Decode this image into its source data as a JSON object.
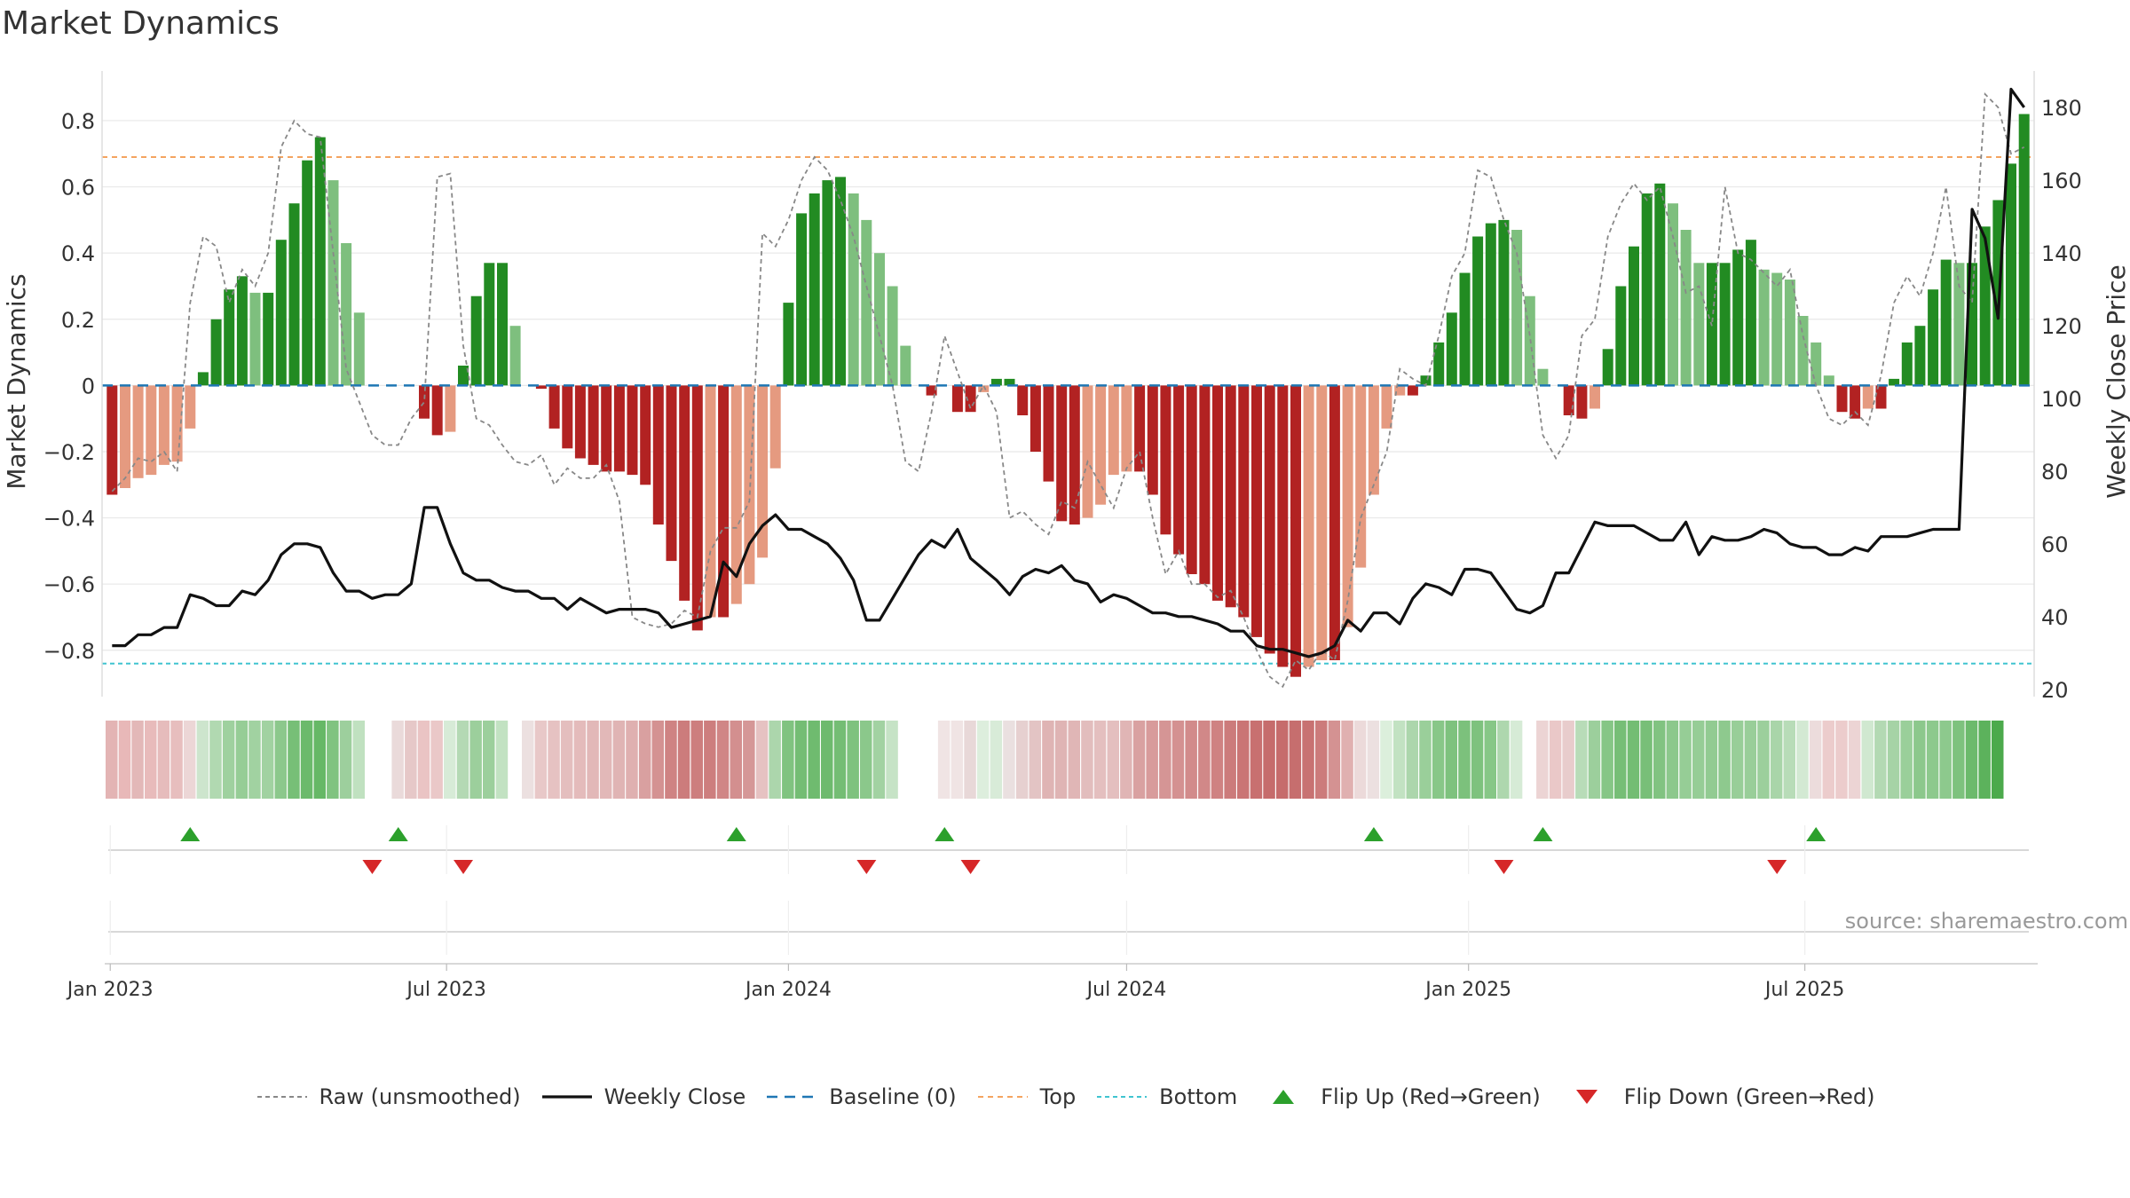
{
  "title": "Market Dynamics",
  "source": "source: sharemaestro.com",
  "colors": {
    "strong_green": "#228b22",
    "light_green": "#7ebf7e",
    "strong_red": "#b22222",
    "light_red": "#e59a80",
    "close": "#111111",
    "raw": "#888888",
    "baseline": "#1f77b4",
    "top": "#f4a460",
    "bottom": "#40c4d0",
    "flip_up": "#2ca02c",
    "flip_down": "#d62728",
    "grid": "#e8e8e8"
  },
  "legend": [
    {
      "key": "raw",
      "label": "Raw (unsmoothed)",
      "icon": "dotted-line-icon"
    },
    {
      "key": "close",
      "label": "Weekly Close",
      "icon": "solid-line-icon"
    },
    {
      "key": "baseline",
      "label": "Baseline (0)",
      "icon": "dashed-line-icon"
    },
    {
      "key": "top",
      "label": "Top",
      "icon": "dashed-line-icon"
    },
    {
      "key": "bottom",
      "label": "Bottom",
      "icon": "dotted-line-icon"
    },
    {
      "key": "flip_up",
      "label": "Flip Up (Red→Green)",
      "icon": "triangle-up-icon"
    },
    {
      "key": "flip_down",
      "label": "Flip Down (Green→Red)",
      "icon": "triangle-down-icon"
    }
  ],
  "chart_data": {
    "type": "bar",
    "title": "Market Dynamics",
    "ylabel": "Market Dynamics",
    "y2label": "Weekly Close Price",
    "ylim": [
      -0.94,
      0.95
    ],
    "y2lim": [
      18,
      190
    ],
    "yticks": [
      0.8,
      0.6,
      0.4,
      0.2,
      0,
      -0.2,
      -0.4,
      -0.6,
      -0.8
    ],
    "ytick_labels": [
      "0.8",
      "0.6",
      "0.4",
      "0.2",
      "0",
      "−0.2",
      "−0.4",
      "−0.6",
      "−0.8"
    ],
    "y2ticks": [
      180,
      160,
      140,
      120,
      100,
      80,
      60,
      40,
      20
    ],
    "x_start": "2023-01-02",
    "x_end": "2025-10-20",
    "xticks": [
      {
        "date": "2023-01-01",
        "label": "Jan 2023"
      },
      {
        "date": "2023-07-01",
        "label": "Jul 2023"
      },
      {
        "date": "2024-01-01",
        "label": "Jan 2024"
      },
      {
        "date": "2024-07-01",
        "label": "Jul 2024"
      },
      {
        "date": "2025-01-01",
        "label": "Jan 2025"
      },
      {
        "date": "2025-07-01",
        "label": "Jul 2025"
      }
    ],
    "top_level": 0.69,
    "bottom_level": -0.84,
    "baseline": 0,
    "grid": true,
    "dynamics": [
      -0.33,
      -0.31,
      -0.28,
      -0.27,
      -0.24,
      -0.23,
      -0.13,
      0.04,
      0.2,
      0.29,
      0.33,
      0.28,
      0.28,
      0.44,
      0.55,
      0.68,
      0.75,
      0.62,
      0.43,
      0.22,
      0,
      0,
      0,
      0,
      -0.1,
      -0.15,
      -0.14,
      0.06,
      0.27,
      0.37,
      0.37,
      0.18,
      0,
      -0.01,
      -0.13,
      -0.19,
      -0.22,
      -0.24,
      -0.26,
      -0.26,
      -0.27,
      -0.3,
      -0.42,
      -0.53,
      -0.65,
      -0.74,
      -0.7,
      -0.7,
      -0.66,
      -0.6,
      -0.52,
      -0.25,
      0.25,
      0.52,
      0.58,
      0.62,
      0.63,
      0.58,
      0.5,
      0.4,
      0.3,
      0.12,
      0,
      -0.03,
      0,
      -0.08,
      -0.08,
      -0.02,
      0.02,
      0.02,
      -0.09,
      -0.2,
      -0.29,
      -0.41,
      -0.42,
      -0.4,
      -0.36,
      -0.27,
      -0.26,
      -0.26,
      -0.33,
      -0.45,
      -0.51,
      -0.57,
      -0.6,
      -0.65,
      -0.67,
      -0.7,
      -0.76,
      -0.81,
      -0.85,
      -0.88,
      -0.85,
      -0.83,
      -0.83,
      -0.73,
      -0.55,
      -0.33,
      -0.13,
      -0.03,
      -0.03,
      0.03,
      0.13,
      0.22,
      0.34,
      0.45,
      0.49,
      0.5,
      0.47,
      0.27,
      0.05,
      0,
      -0.09,
      -0.1,
      -0.07,
      0.11,
      0.3,
      0.42,
      0.58,
      0.61,
      0.55,
      0.47,
      0.37,
      0.37,
      0.37,
      0.41,
      0.44,
      0.35,
      0.34,
      0.32,
      0.21,
      0.13,
      0.03,
      -0.08,
      -0.1,
      -0.07,
      -0.07,
      0.02,
      0.13,
      0.18,
      0.29,
      0.38,
      0.37,
      0.37,
      0.48,
      0.56,
      0.67,
      0.82
    ],
    "raw": [
      -0.32,
      -0.28,
      -0.22,
      -0.23,
      -0.2,
      -0.26,
      0.25,
      0.45,
      0.42,
      0.25,
      0.35,
      0.3,
      0.4,
      0.72,
      0.8,
      0.76,
      0.75,
      0.4,
      0.05,
      -0.05,
      -0.15,
      -0.18,
      -0.18,
      -0.1,
      -0.05,
      0.63,
      0.64,
      0.12,
      -0.1,
      -0.12,
      -0.18,
      -0.23,
      -0.24,
      -0.21,
      -0.3,
      -0.25,
      -0.28,
      -0.28,
      -0.24,
      -0.35,
      -0.7,
      -0.72,
      -0.73,
      -0.72,
      -0.68,
      -0.7,
      -0.5,
      -0.43,
      -0.43,
      -0.35,
      0.46,
      0.42,
      0.5,
      0.62,
      0.69,
      0.65,
      0.56,
      0.45,
      0.3,
      0.15,
      0.0,
      -0.23,
      -0.26,
      -0.08,
      0.15,
      0.04,
      -0.07,
      0.0,
      -0.08,
      -0.4,
      -0.38,
      -0.42,
      -0.45,
      -0.35,
      -0.37,
      -0.23,
      -0.3,
      -0.37,
      -0.25,
      -0.2,
      -0.4,
      -0.57,
      -0.5,
      -0.6,
      -0.6,
      -0.64,
      -0.62,
      -0.7,
      -0.8,
      -0.88,
      -0.91,
      -0.83,
      -0.86,
      -0.8,
      -0.83,
      -0.65,
      -0.4,
      -0.3,
      -0.2,
      0.05,
      0.02,
      0.0,
      0.15,
      0.33,
      0.4,
      0.65,
      0.63,
      0.5,
      0.4,
      0.15,
      -0.15,
      -0.22,
      -0.15,
      0.15,
      0.2,
      0.45,
      0.55,
      0.61,
      0.56,
      0.6,
      0.45,
      0.28,
      0.3,
      0.18,
      0.6,
      0.4,
      0.38,
      0.34,
      0.3,
      0.35,
      0.15,
      0.0,
      -0.1,
      -0.12,
      -0.08,
      -0.12,
      0.03,
      0.25,
      0.33,
      0.27,
      0.4,
      0.6,
      0.3,
      0.25,
      0.88,
      0.84,
      0.7,
      0.72
    ],
    "close": [
      32,
      32,
      35,
      35,
      37,
      37,
      46,
      45,
      43,
      43,
      47,
      46,
      50,
      57,
      60,
      60,
      59,
      52,
      47,
      47,
      45,
      46,
      46,
      49,
      70,
      70,
      60,
      52,
      50,
      50,
      48,
      47,
      47,
      45,
      45,
      42,
      45,
      43,
      41,
      42,
      42,
      42,
      41,
      37,
      38,
      39,
      40,
      55,
      51,
      60,
      65,
      68,
      64,
      64,
      62,
      60,
      56,
      50,
      39,
      39,
      45,
      51,
      57,
      61,
      59,
      64,
      56,
      53,
      50,
      46,
      51,
      53,
      52,
      54,
      50,
      49,
      44,
      46,
      45,
      43,
      41,
      41,
      40,
      40,
      39,
      38,
      36,
      36,
      32,
      31,
      31,
      30,
      29,
      30,
      32,
      39,
      36,
      41,
      41,
      38,
      45,
      49,
      48,
      46,
      53,
      53,
      52,
      47,
      42,
      41,
      43,
      52,
      52,
      59,
      66,
      65,
      65,
      65,
      63,
      61,
      61,
      66,
      57,
      62,
      61,
      61,
      62,
      64,
      63,
      60,
      59,
      59,
      57,
      57,
      59,
      58,
      62,
      62,
      62,
      63,
      64,
      64,
      64,
      152,
      144,
      122,
      185,
      180
    ],
    "ribbon_colors": [
      "#e3b4b4",
      "#e8b8b8",
      "#e3b8b8",
      "#e8bbbb",
      "#e6bcbc",
      "#e7bebe",
      "#ecd6d6",
      "#cde5cd",
      "#b1d9b1",
      "#9fd19f",
      "#96cd96",
      "#a1d2a1",
      "#a1d2a1",
      "#8cc88c",
      "#77bf77",
      "#6cba6c",
      "#66b866",
      "#80c380",
      "#9dcf9d",
      "#c0e1c0",
      "#ffffff",
      "#ffffff",
      "#eadada",
      "#e6c8c8",
      "#eac4c4",
      "#eac8c8",
      "#d7ebd7",
      "#b4d9b4",
      "#9ccf9c",
      "#9ccf9c",
      "#c2e2c2",
      "#ffffff",
      "#ece0e0",
      "#e8c8c8",
      "#e6c2c2",
      "#e4bebe",
      "#e4bbbb",
      "#e2b8b8",
      "#e2b8b8",
      "#e0b4b4",
      "#dfb0b0",
      "#d9a0a0",
      "#d49292",
      "#cf8383",
      "#cc7c7c",
      "#cd7e7e",
      "#cd7e7e",
      "#d08686",
      "#d38f8f",
      "#d59797",
      "#e6c2c2",
      "#acd6ac",
      "#80c380",
      "#74bd74",
      "#6fbb6f",
      "#6eba6e",
      "#74bd74",
      "#7ec27e",
      "#8bc88b",
      "#a2d2a2",
      "#c6e3c6",
      "#ffffff",
      "#ffffff",
      "#ffffff",
      "#f0e4e4",
      "#f0e4e4",
      "#e8d8d8",
      "#ddeedd",
      "#d8ebd8",
      "#eae0e0",
      "#e6d0d0",
      "#e3c4c4",
      "#dfb4b4",
      "#dfb4b4",
      "#e0b6b6",
      "#e2bdbd",
      "#e4bfbf",
      "#e4bfbf",
      "#e0b5b5",
      "#d9a1a1",
      "#d89b9b",
      "#d59595",
      "#d49191",
      "#d28b8b",
      "#d18888",
      "#cf8282",
      "#cc7b7b",
      "#ca7575",
      "#c87070",
      "#c66c6c",
      "#c66c6c",
      "#c66e6e",
      "#c87272",
      "#cc7b7b",
      "#d49292",
      "#e0b0b0",
      "#ecdada",
      "#ece0e0",
      "#dcefdc",
      "#c2e2c2",
      "#acd6ac",
      "#9acf9a",
      "#88c788",
      "#7ec27e",
      "#7cc17c",
      "#7ec27e",
      "#87c787",
      "#aed7ae",
      "#d6ebd6",
      "#ffffff",
      "#ecd4d4",
      "#eac8c8",
      "#e8cccc",
      "#b8dcb8",
      "#9ccf9c",
      "#86c686",
      "#76be76",
      "#73bd73",
      "#78bf78",
      "#81c381",
      "#8cc88c",
      "#96cd96",
      "#96cd96",
      "#92cb92",
      "#8ec98e",
      "#98ce98",
      "#99ce99",
      "#9ccf9c",
      "#a9d5a9",
      "#b8dcb8",
      "#d3e9d3",
      "#ecdcdc",
      "#eccccc",
      "#eccccc",
      "#ecd4d4",
      "#d0e8d0",
      "#b3d9b3",
      "#a6d3a6",
      "#9acf9a",
      "#8cc88c",
      "#8dc98d",
      "#8dc98d",
      "#7ec27e",
      "#6cba6c",
      "#5cb25c",
      "#4caa4c"
    ],
    "flip_up_dates": [
      "2023-02-13",
      "2023-06-05",
      "2023-12-04",
      "2024-03-25",
      "2024-11-11",
      "2025-02-10",
      "2025-07-07"
    ],
    "flip_down_dates": [
      "2023-05-22",
      "2023-07-10",
      "2024-02-12",
      "2024-04-08",
      "2025-01-20",
      "2025-06-16"
    ]
  }
}
